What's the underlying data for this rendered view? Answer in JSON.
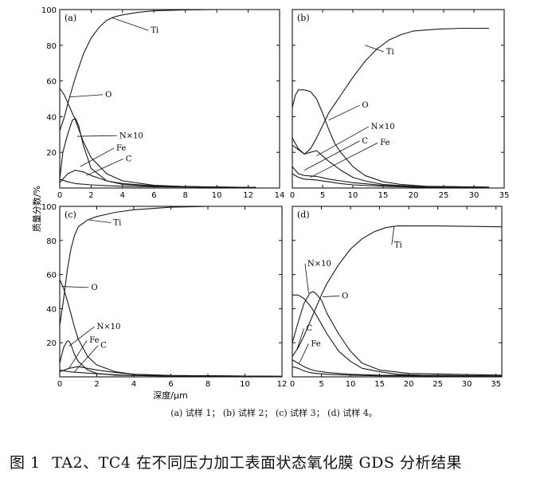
{
  "figure": {
    "ylabel": "质量分数/%",
    "xlabel": "深度/μm",
    "subcaption": "(a) 试样 1； (b) 试样 2； (c) 试样 3； (d) 试样 4。",
    "caption_number": "图 1",
    "caption_text": "TA2、TC4 在不同压力加工表面状态氧化膜 GDS 分析结果"
  },
  "chart_data": [
    {
      "type": "line",
      "panel_label": "(a)",
      "xlim": [
        0,
        14
      ],
      "ylim": [
        0,
        100
      ],
      "xticks": [
        0,
        2,
        4,
        6,
        8,
        10,
        12,
        14
      ],
      "yticks": [
        20,
        40,
        60,
        80,
        100
      ],
      "series": [
        {
          "name": "Ti",
          "x": [
            0,
            0.3,
            0.6,
            1,
            1.5,
            2,
            2.5,
            3,
            3.5,
            4,
            5,
            6,
            8,
            10,
            12.5
          ],
          "y": [
            32,
            40,
            50,
            62,
            75,
            84,
            90,
            94,
            96,
            97,
            98.5,
            99.3,
            99.8,
            100,
            100
          ]
        },
        {
          "name": "O",
          "x": [
            0,
            0.3,
            0.6,
            1,
            1.5,
            2,
            3,
            4,
            6,
            8,
            12.5
          ],
          "y": [
            56,
            52,
            46,
            38,
            26,
            17,
            8,
            4,
            1.5,
            0.8,
            0.3
          ]
        },
        {
          "name": "N×10",
          "x": [
            0,
            0.2,
            0.5,
            0.8,
            1.0,
            1.2,
            1.5,
            2,
            3,
            4,
            6,
            12.5
          ],
          "y": [
            5,
            20,
            30,
            38,
            39,
            35,
            24,
            11,
            4,
            2,
            1,
            0.3
          ]
        },
        {
          "name": "Fe",
          "x": [
            0,
            0.5,
            1,
            1.5,
            2,
            3,
            4,
            6,
            10,
            12.5
          ],
          "y": [
            3,
            8,
            10,
            9,
            7,
            4,
            2.5,
            1.2,
            0.5,
            0.3
          ]
        },
        {
          "name": "C",
          "x": [
            0,
            0.5,
            1,
            2,
            3,
            4,
            6,
            10,
            12.5
          ],
          "y": [
            5,
            3.5,
            2.5,
            1.8,
            1.3,
            1,
            0.7,
            0.4,
            0.3
          ]
        }
      ],
      "labels": [
        {
          "text": "Ti",
          "x": 5.8,
          "y": 87,
          "ax": 3.3,
          "ay": 95.5
        },
        {
          "text": "O",
          "x": 2.9,
          "y": 51,
          "ax": 0.6,
          "ay": 51
        },
        {
          "text": "N×10",
          "x": 3.8,
          "y": 28,
          "ax": 1.1,
          "ay": 29
        },
        {
          "text": "Fe",
          "x": 3.6,
          "y": 21,
          "ax": 1.3,
          "ay": 12
        },
        {
          "text": "C",
          "x": 4.2,
          "y": 15,
          "ax": 1.7,
          "ay": 7
        }
      ]
    },
    {
      "type": "line",
      "panel_label": "(b)",
      "xlim": [
        0,
        35
      ],
      "ylim": [
        0,
        100
      ],
      "xticks": [
        0,
        5,
        10,
        15,
        20,
        25,
        30,
        35
      ],
      "yticks": [
        20,
        40,
        60,
        80,
        100
      ],
      "series": [
        {
          "name": "Ti",
          "x": [
            0,
            2,
            3,
            4,
            5,
            6,
            8,
            10,
            12,
            14,
            16,
            18,
            20,
            24,
            28,
            32.5
          ],
          "y": [
            24,
            19,
            22,
            28,
            35,
            42,
            52,
            62,
            71,
            78,
            83,
            86,
            88,
            89,
            89.5,
            89.5
          ]
        },
        {
          "name": "O",
          "x": [
            0,
            0.5,
            1,
            2,
            3,
            4,
            4.5,
            5,
            6,
            7,
            8,
            10,
            12,
            15,
            18,
            22,
            32.5
          ],
          "y": [
            45,
            52,
            55,
            55,
            54,
            50,
            46,
            42,
            33,
            25,
            20,
            12,
            7,
            3.5,
            2,
            1,
            0.5
          ]
        },
        {
          "name": "N×10",
          "x": [
            0,
            1,
            2,
            3,
            4,
            5,
            6,
            8,
            10,
            12,
            15,
            20,
            32.5
          ],
          "y": [
            28,
            22,
            19,
            20,
            21,
            18,
            15,
            10,
            6,
            4,
            2,
            1,
            0.5
          ]
        },
        {
          "name": "C",
          "x": [
            0,
            1,
            2,
            4,
            6,
            8,
            10,
            15,
            20,
            32.5
          ],
          "y": [
            12,
            8,
            7,
            6.5,
            5,
            4,
            3,
            1.5,
            0.8,
            0.4
          ]
        },
        {
          "name": "Fe",
          "x": [
            0,
            1,
            2,
            4,
            6,
            8,
            10,
            15,
            20,
            32.5
          ],
          "y": [
            8,
            6,
            5,
            4.5,
            3.5,
            2.5,
            1.8,
            1,
            0.5,
            0.3
          ]
        }
      ],
      "labels": [
        {
          "text": "Ti",
          "x": 15.5,
          "y": 75,
          "ax": 12,
          "ay": 80
        },
        {
          "text": "O",
          "x": 11.5,
          "y": 45,
          "ax": 6,
          "ay": 38
        },
        {
          "text": "N×10",
          "x": 13,
          "y": 33,
          "ax": 4,
          "ay": 18
        },
        {
          "text": "C",
          "x": 11.5,
          "y": 25,
          "ax": 2,
          "ay": 10
        },
        {
          "text": "Fe",
          "x": 14.5,
          "y": 24,
          "ax": 3,
          "ay": 6
        }
      ]
    },
    {
      "type": "line",
      "panel_label": "(c)",
      "xlim": [
        0,
        12
      ],
      "ylim": [
        0,
        100
      ],
      "xticks": [
        0,
        2,
        4,
        6,
        8,
        10,
        12
      ],
      "yticks": [
        20,
        40,
        60,
        80,
        100
      ],
      "series": [
        {
          "name": "Ti",
          "x": [
            0,
            0.2,
            0.4,
            0.6,
            0.8,
            1,
            1.5,
            2,
            3,
            4,
            6,
            8,
            12
          ],
          "y": [
            30,
            45,
            62,
            75,
            83,
            88,
            92,
            94,
            96.5,
            98,
            99.5,
            100,
            100
          ]
        },
        {
          "name": "O",
          "x": [
            0,
            0.2,
            0.4,
            0.6,
            0.8,
            1,
            1.5,
            2,
            3,
            4,
            6,
            12
          ],
          "y": [
            57,
            52,
            45,
            37,
            29,
            22,
            12,
            7,
            3,
            1.5,
            0.8,
            0.3
          ]
        },
        {
          "name": "N×10",
          "x": [
            0,
            0.2,
            0.4,
            0.5,
            0.6,
            0.8,
            1,
            1.5,
            2,
            3,
            6,
            12
          ],
          "y": [
            8,
            17,
            21,
            21,
            19,
            13,
            9,
            4,
            2,
            1,
            0.5,
            0.2
          ]
        },
        {
          "name": "Fe",
          "x": [
            0,
            0.5,
            1,
            1.5,
            2,
            3,
            4,
            6,
            12
          ],
          "y": [
            3,
            5,
            6,
            5,
            4,
            2.5,
            1.5,
            0.8,
            0.3
          ]
        },
        {
          "name": "C",
          "x": [
            0,
            0.5,
            1,
            2,
            3,
            4,
            6,
            12
          ],
          "y": [
            4,
            3,
            2.5,
            1.8,
            1.2,
            0.8,
            0.5,
            0.3
          ]
        }
      ],
      "labels": [
        {
          "text": "Ti",
          "x": 2.9,
          "y": 89,
          "ax": 1.6,
          "ay": 92
        },
        {
          "text": "O",
          "x": 1.7,
          "y": 51,
          "ax": 0.1,
          "ay": 53
        },
        {
          "text": "N×10",
          "x": 2.0,
          "y": 28,
          "ax": 0.5,
          "ay": 18
        },
        {
          "text": "Fe",
          "x": 1.6,
          "y": 20,
          "ax": 0.5,
          "ay": 5
        },
        {
          "text": "C",
          "x": 2.2,
          "y": 17,
          "ax": 0.8,
          "ay": 3
        }
      ]
    },
    {
      "type": "line",
      "panel_label": "(d)",
      "xlim": [
        0,
        36
      ],
      "ylim": [
        0,
        100
      ],
      "xticks": [
        0,
        5,
        10,
        15,
        20,
        25,
        30,
        35
      ],
      "yticks": [
        20,
        40,
        60,
        80,
        100
      ],
      "series": [
        {
          "name": "Ti",
          "x": [
            0,
            1,
            2,
            3,
            4,
            5,
            6,
            8,
            10,
            12,
            14,
            16,
            18,
            20,
            25,
            36
          ],
          "y": [
            12,
            17,
            24,
            32,
            40,
            48,
            55,
            66,
            75,
            81,
            85,
            87.5,
            88.5,
            88.5,
            88.5,
            88
          ]
        },
        {
          "name": "O",
          "x": [
            0,
            1,
            2,
            3,
            4,
            5,
            6,
            8,
            10,
            12,
            15,
            18,
            22,
            36
          ],
          "y": [
            48,
            48,
            46,
            42,
            37,
            31,
            25,
            15,
            9,
            5,
            3,
            1.5,
            1,
            0.5
          ]
        },
        {
          "name": "N×10",
          "x": [
            0,
            1,
            2,
            3,
            3.5,
            4,
            5,
            6,
            8,
            10,
            12,
            15,
            20,
            36
          ],
          "y": [
            20,
            32,
            43,
            49,
            50,
            49,
            45,
            37,
            25,
            15,
            8,
            4,
            2,
            1
          ]
        },
        {
          "name": "C",
          "x": [
            0,
            1,
            2,
            3,
            4,
            6,
            10,
            15,
            36
          ],
          "y": [
            10,
            8,
            6,
            4.5,
            3.5,
            2.5,
            1.5,
            1,
            0.5
          ]
        },
        {
          "name": "Fe",
          "x": [
            0,
            1,
            2,
            3,
            4,
            6,
            10,
            15,
            36
          ],
          "y": [
            6,
            5,
            3.5,
            2.5,
            2,
            1.5,
            1,
            0.6,
            0.3
          ]
        }
      ],
      "labels": [
        {
          "text": "Ti",
          "x": 17.5,
          "y": 76,
          "ax": 17.5,
          "ay": 88.5
        },
        {
          "text": "O",
          "x": 8.5,
          "y": 46,
          "ax": 5.2,
          "ay": 47
        },
        {
          "text": "N×10",
          "x": 2.6,
          "y": 65,
          "ax": 2.8,
          "ay": 49
        },
        {
          "text": "C",
          "x": 2.4,
          "y": 27,
          "ax": 0.8,
          "ay": 16
        },
        {
          "text": "Fe",
          "x": 3.2,
          "y": 18,
          "ax": 1.2,
          "ay": 8
        }
      ]
    }
  ]
}
